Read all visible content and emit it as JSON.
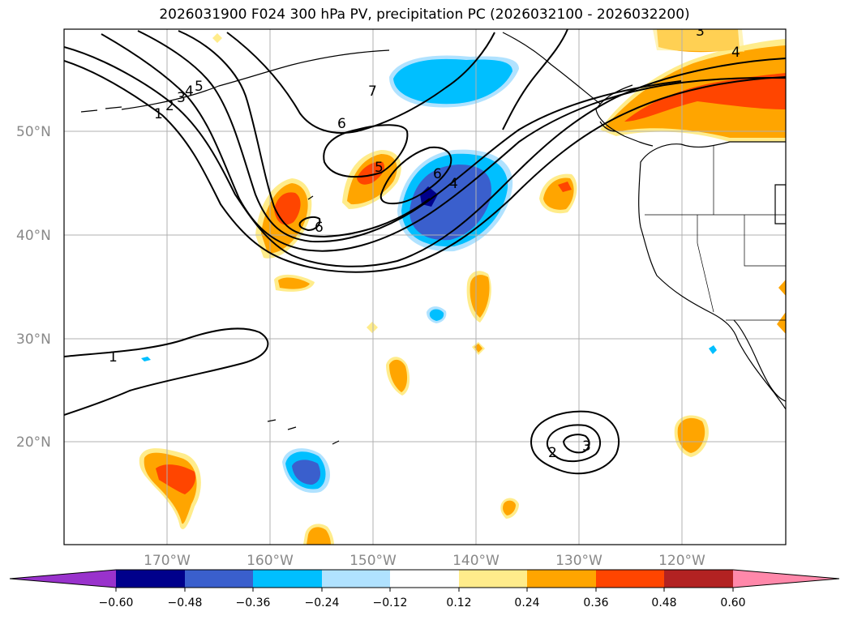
{
  "title": "2026031900 F024 300 hPa PV, precipitation PC (2026032100 - 2026032200)",
  "lat_labels": [
    "50°N",
    "40°N",
    "30°N",
    "20°N"
  ],
  "lon_labels": [
    "170°W",
    "160°W",
    "150°W",
    "140°W",
    "130°W",
    "120°W"
  ],
  "contour_labels": [
    "1",
    "2",
    "3",
    "4",
    "5",
    "6",
    "7",
    "6",
    "5",
    "6",
    "4",
    "4",
    "3",
    "1",
    "2",
    "3"
  ],
  "colorbar": {
    "ticks": [
      "−0.60",
      "−0.48",
      "−0.36",
      "−0.24",
      "−0.12",
      "0.12",
      "0.24",
      "0.36",
      "0.48",
      "0.60"
    ],
    "colors": [
      "#9932cc",
      "#00008b",
      "#3a5fcd",
      "#00bfff",
      "#b0e2ff",
      "#ffffff",
      "#ffec8b",
      "#ffa500",
      "#ff4500",
      "#b22222",
      "#ff88aa",
      "#ff88aa"
    ]
  },
  "colors": {
    "light_yellow": "#ffec8b",
    "orange": "#ffa500",
    "orange_red": "#ff4500",
    "deep_sky": "#00bfff",
    "royal_blue": "#3a5fcd",
    "navy": "#00008b",
    "light_blue": "#b0e2ff"
  }
}
